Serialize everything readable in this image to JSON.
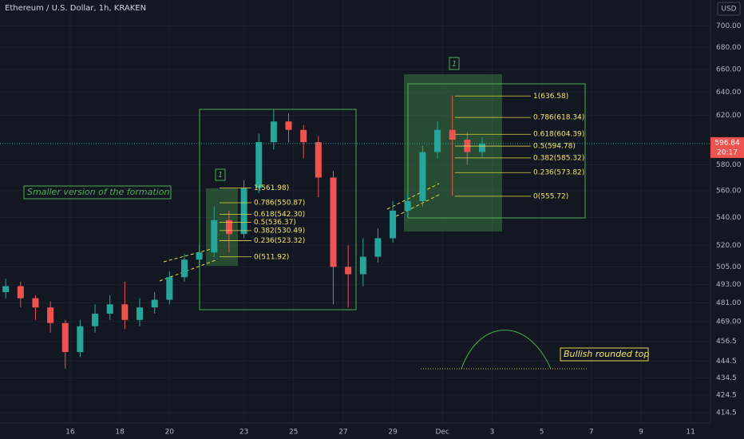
{
  "chart_data": {
    "type": "candlestick",
    "title": "Ethereum / U.S. Dollar, 1h, KRAKEN",
    "currency": "USD",
    "log_scale": true,
    "grid": true,
    "up_color": "#26a69a",
    "down_color": "#ef5350",
    "x": [
      13.4,
      14.0,
      14.6,
      15.2,
      15.8,
      16.4,
      17.0,
      17.6,
      18.2,
      18.8,
      19.4,
      20.0,
      20.6,
      21.2,
      21.8,
      22.4,
      23.0,
      23.6,
      24.2,
      24.8,
      25.4,
      26.0,
      26.6,
      27.2,
      27.8,
      28.4,
      29.0,
      29.6,
      30.2,
      30.8,
      31.4,
      32.0,
      32.6
    ],
    "open": [
      488,
      492,
      484,
      478,
      468,
      450,
      466,
      474,
      480,
      470,
      478,
      483,
      498,
      510,
      515,
      538,
      528,
      562,
      598,
      615,
      608,
      598,
      570,
      505,
      500,
      512,
      525,
      545,
      552,
      590,
      608,
      600,
      590
    ],
    "high": [
      497,
      495,
      486,
      482,
      470,
      470,
      480,
      486,
      495,
      484,
      488,
      502,
      514,
      520,
      548,
      545,
      568,
      605,
      625,
      622,
      612,
      603,
      575,
      520,
      525,
      532,
      552,
      558,
      595,
      615,
      637,
      606,
      602
    ],
    "low": [
      484,
      478,
      470,
      462,
      440,
      447,
      462,
      470,
      464,
      466,
      474,
      480,
      495,
      506,
      512,
      515,
      525,
      558,
      592,
      598,
      585,
      555,
      480,
      478,
      492,
      508,
      522,
      540,
      548,
      585,
      556,
      580,
      586
    ],
    "close": [
      492,
      484,
      478,
      468,
      450,
      466,
      474,
      480,
      470,
      478,
      483,
      498,
      510,
      515,
      538,
      528,
      562,
      598,
      615,
      608,
      598,
      570,
      505,
      500,
      512,
      525,
      545,
      552,
      590,
      608,
      600,
      590,
      596.84
    ],
    "xlim": [
      13.17,
      41.8
    ],
    "xticks": [
      16,
      18,
      20,
      23,
      25,
      27,
      29,
      {
        "value": 31,
        "label": "Dec"
      },
      {
        "value": 33,
        "label": "3"
      },
      {
        "value": 35,
        "label": "5"
      },
      {
        "value": 37,
        "label": "7"
      },
      {
        "value": 39,
        "label": "9"
      },
      {
        "value": 41,
        "label": "11"
      }
    ],
    "ylim": [
      406.5,
      725
    ],
    "yticks": [
      {
        "value": 700,
        "label": "700.00"
      },
      {
        "value": 680,
        "label": "680.00"
      },
      {
        "value": 660,
        "label": "660.00"
      },
      {
        "value": 640,
        "label": "640.00"
      },
      {
        "value": 620,
        "label": "620.00"
      },
      {
        "value": 580,
        "label": "580.00"
      },
      {
        "value": 560,
        "label": "560.00"
      },
      {
        "value": 540,
        "label": "540.00"
      },
      {
        "value": 520,
        "label": "520.00"
      },
      {
        "value": 505,
        "label": "505.00"
      },
      {
        "value": 493,
        "label": "493.00"
      },
      {
        "value": 481,
        "label": "481.00"
      },
      {
        "value": 469,
        "label": "469.00"
      },
      456.5,
      444.5,
      434.5,
      424.5,
      414.5
    ],
    "last_price": 596.84,
    "countdown": "20:17",
    "fib_levels": [
      [
        {
          "value": 561.98,
          "label": "1(561.98)"
        },
        {
          "value": 550.87,
          "label": "0.786(550.87)"
        },
        {
          "value": 542.3,
          "label": "0.618(542.30)"
        },
        {
          "value": 536.37,
          "label": "0.5(536.37)"
        },
        {
          "value": 530.49,
          "label": "0.382(530.49)"
        },
        {
          "value": 523.32,
          "label": "0.236(523.32)"
        },
        {
          "value": 511.92,
          "label": "0(511.92)"
        }
      ],
      [
        {
          "value": 636.58,
          "label": "1(636.58)"
        },
        {
          "value": 618.34,
          "label": "0.786(618.34)"
        },
        {
          "value": 604.39,
          "label": "0.618(604.39)"
        },
        {
          "value": 594.78,
          "label": "0.5(594.78)"
        },
        {
          "value": 585.32,
          "label": "0.382(585.32)"
        },
        {
          "value": 573.82,
          "label": "0.236(573.82)"
        },
        {
          "value": 555.72,
          "label": "0(555.72)"
        }
      ]
    ],
    "annotations": [
      "Smaller version of the formation",
      "Bullish rounded top",
      "1",
      "1"
    ]
  }
}
